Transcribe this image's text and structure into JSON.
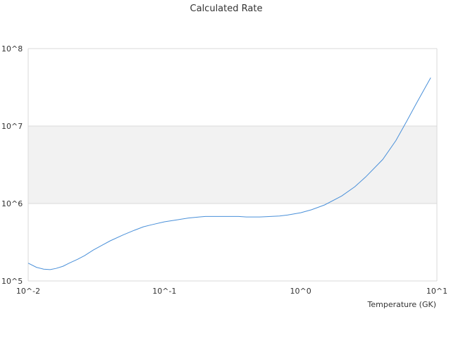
{
  "chart_data": {
    "type": "line",
    "title": "Calculated Rate",
    "xlabel": "Temperature (GK)",
    "ylabel": "",
    "x_scale": "log",
    "y_scale": "log",
    "xlim": [
      0.01,
      10
    ],
    "ylim": [
      100000,
      100000000
    ],
    "x_ticks": [
      {
        "value": 0.01,
        "label": "10^-2"
      },
      {
        "value": 0.1,
        "label": "10^-1"
      },
      {
        "value": 1,
        "label": "10^0"
      },
      {
        "value": 10,
        "label": "10^1"
      }
    ],
    "y_ticks": [
      {
        "value": 100000,
        "label": "10^5"
      },
      {
        "value": 1000000,
        "label": "10^6"
      },
      {
        "value": 10000000,
        "label": "10^7"
      },
      {
        "value": 100000000,
        "label": "10^8"
      }
    ],
    "grid": true,
    "alternating_bands": true,
    "series_color": "#4a90d9",
    "series": [
      {
        "x": [
          0.01,
          0.0115,
          0.013,
          0.0145,
          0.016,
          0.018,
          0.02,
          0.023,
          0.026,
          0.03,
          0.035,
          0.04,
          0.05,
          0.06,
          0.07,
          0.08,
          0.1,
          0.12,
          0.15,
          0.18,
          0.2,
          0.25,
          0.3,
          0.35,
          0.4,
          0.5,
          0.6,
          0.7,
          0.8,
          1.0,
          1.2,
          1.5,
          2.0,
          2.5,
          3.0,
          4.0,
          5.0,
          6.0,
          7.0,
          8.0,
          9.0
        ],
        "y": [
          170000,
          150000,
          142000,
          140000,
          145000,
          155000,
          170000,
          190000,
          213000,
          250000,
          290000,
          330000,
          395000,
          450000,
          500000,
          530000,
          580000,
          610000,
          650000,
          670000,
          680000,
          680000,
          680000,
          680000,
          670000,
          670000,
          680000,
          690000,
          710000,
          760000,
          830000,
          960000,
          1250000,
          1650000,
          2200000,
          3700000,
          6500000,
          11500000,
          19000000,
          29000000,
          42000000
        ]
      }
    ]
  }
}
